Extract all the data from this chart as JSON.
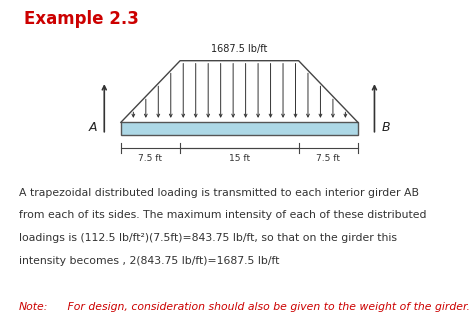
{
  "title": "Example 2.3",
  "title_color": "#cc0000",
  "title_fontsize": 12,
  "beam_color": "#add8e6",
  "beam_edge_color": "#555555",
  "load_label": "1687.5 lb/ft",
  "dim_7_5_left": "7.5 ft",
  "dim_15": "15 ft",
  "dim_7_5_right": "7.5 ft",
  "label_A": "A",
  "label_B": "B",
  "body_line1": "A trapezoidal distributed loading is transmitted to each interior girder AB",
  "body_line2": "from each of its sides. The maximum intensity of each of these distributed",
  "body_line3": "loadings is (112.5 lb/ft²)(7.5ft)=843.75 lb/ft, so that on the girder this",
  "body_line4": "intensity becomes , 2(843.75 lb/ft)=1687.5 lb/ft",
  "note_label": "Note:",
  "note_text": " For design, consideration should also be given to the weight of the girder.",
  "note_color": "#cc0000",
  "background_color": "#ffffff",
  "text_color": "#333333",
  "arrow_color": "#333333",
  "body_fontsize": 7.8,
  "note_fontsize": 7.8
}
